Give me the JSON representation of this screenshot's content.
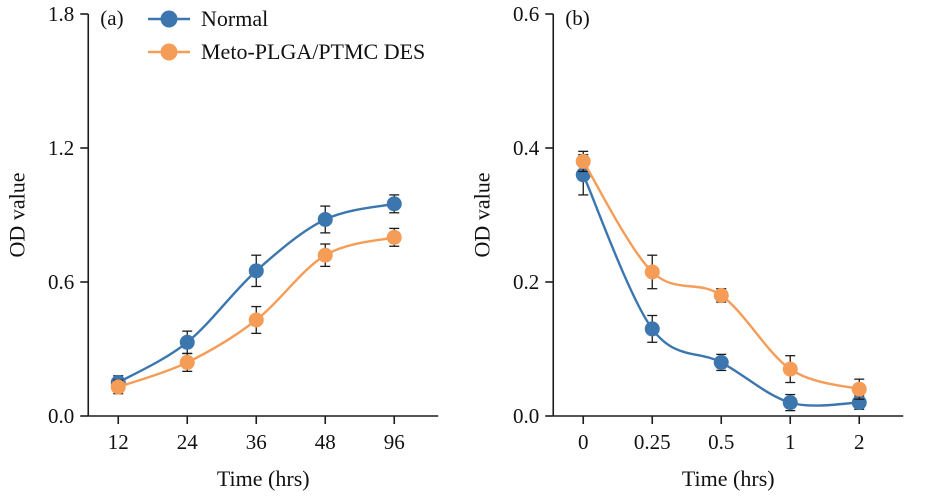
{
  "figure": {
    "background": "#ffffff",
    "axis_color": "#1c1c1c",
    "error_bar_color": "#1c1c1c",
    "legend": [
      {
        "label": "Normal",
        "color": "#3b76af"
      },
      {
        "label": "Meto-PLGA/PTMC DES",
        "color": "#f59c57"
      }
    ]
  },
  "chart_data": [
    {
      "type": "line",
      "panel_label": "(a)",
      "xlabel": "Time (hrs)",
      "ylabel": "OD value",
      "categories": [
        "12",
        "24",
        "36",
        "48",
        "96"
      ],
      "ylim": [
        0,
        1.8
      ],
      "yticks": [
        "0.0",
        "0.6",
        "1.2",
        "1.8"
      ],
      "grid": false,
      "legend_position": "top-left-inside",
      "series": [
        {
          "name": "Normal",
          "color": "#3b76af",
          "values": [
            0.15,
            0.33,
            0.65,
            0.88,
            0.95
          ],
          "errors": [
            0.03,
            0.05,
            0.07,
            0.06,
            0.04
          ]
        },
        {
          "name": "Meto-PLGA/PTMC DES",
          "color": "#f59c57",
          "values": [
            0.13,
            0.24,
            0.43,
            0.72,
            0.8
          ],
          "errors": [
            0.03,
            0.04,
            0.06,
            0.05,
            0.04
          ]
        }
      ]
    },
    {
      "type": "line",
      "panel_label": "(b)",
      "xlabel": "Time (hrs)",
      "ylabel": "OD value",
      "categories": [
        "0",
        "0.25",
        "0.5",
        "1",
        "2"
      ],
      "ylim": [
        0,
        0.6
      ],
      "yticks": [
        "0.0",
        "0.2",
        "0.4",
        "0.6"
      ],
      "grid": false,
      "legend_position": "none",
      "series": [
        {
          "name": "Normal",
          "color": "#3b76af",
          "values": [
            0.36,
            0.13,
            0.08,
            0.02,
            0.02
          ],
          "errors": [
            0.03,
            0.02,
            0.012,
            0.012,
            0.01
          ]
        },
        {
          "name": "Meto-PLGA/PTMC DES",
          "color": "#f59c57",
          "values": [
            0.38,
            0.215,
            0.18,
            0.07,
            0.04
          ],
          "errors": [
            0.015,
            0.025,
            0.01,
            0.02,
            0.015
          ]
        }
      ]
    }
  ]
}
